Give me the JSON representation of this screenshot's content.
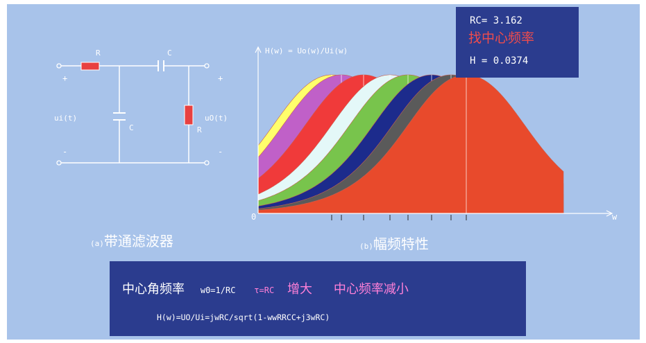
{
  "circuit": {
    "r1_label": "R",
    "c1_label": "C",
    "c2_label": "C",
    "r2_label": "R",
    "plus_in": "+",
    "minus_in": "-",
    "plus_out": "+",
    "minus_out": "-",
    "input_label": "ui(t)",
    "output_label": "uO(t)",
    "caption_prefix": "(a)",
    "caption": "带通滤波器"
  },
  "plot": {
    "formula_label": "H(w) = Uo(w)/Ui(w)",
    "origin_label": "0",
    "x_axis_label": "w",
    "caption_prefix": "(b)",
    "caption": "幅频特性",
    "colors": {
      "axis": "#ffffff",
      "fills": [
        "#ffff6b",
        "#c060c8",
        "#f03a3a",
        "#e4f8f8",
        "#78c44c",
        "#1c2b8c",
        "#5a5a5a",
        "#e84a2c"
      ]
    }
  },
  "chart_data": {
    "type": "area",
    "title": "H(w) = Uo(w)/Ui(w)",
    "xlabel": "w",
    "ylabel": "",
    "series_count": 8,
    "grid": false
  },
  "info": {
    "rc_text": "RC= 3.162",
    "find_center": "找中心频率",
    "h_text": "H = 0.0374"
  },
  "bottom": {
    "center_freq": "中心角频率",
    "w0_formula": "w0=1/RC",
    "tau_formula": "τ=RC",
    "increase": "增大",
    "decrease": "中心频率减小",
    "transfer_function": "H(w)=UO/Ui=jwRC/sqrt(1-wwRRCC+j3wRC)"
  }
}
